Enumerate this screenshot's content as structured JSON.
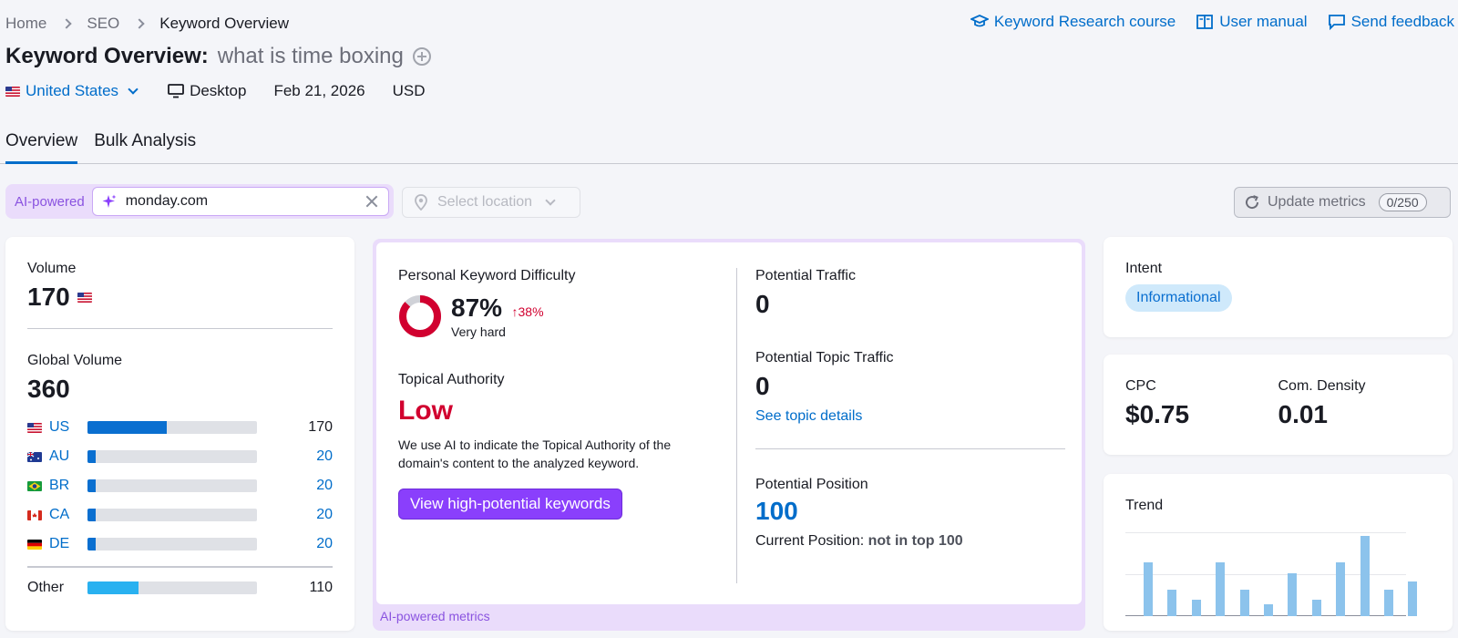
{
  "breadcrumb": [
    "Home",
    "SEO",
    "Keyword Overview"
  ],
  "top_links": [
    "Keyword Research course",
    "User manual",
    "Send feedback"
  ],
  "title": {
    "prefix": "Keyword Overview:",
    "keyword": "what is time boxing"
  },
  "meta": {
    "country": "United States",
    "device": "Desktop",
    "date": "Feb 21, 2026",
    "currency": "USD"
  },
  "tabs": [
    "Overview",
    "Bulk Analysis"
  ],
  "filter": {
    "ai_label": "AI-powered",
    "domain_value": "monday.com",
    "location_placeholder": "Select location",
    "update_label": "Update metrics",
    "update_count": "0/250"
  },
  "volume": {
    "label": "Volume",
    "value": "170",
    "global_label": "Global Volume",
    "global_value": "360",
    "countries": [
      {
        "code": "US",
        "value": "170",
        "fill": 0.47
      },
      {
        "code": "AU",
        "value": "20",
        "fill": 0.05
      },
      {
        "code": "BR",
        "value": "20",
        "fill": 0.05
      },
      {
        "code": "CA",
        "value": "20",
        "fill": 0.05
      },
      {
        "code": "DE",
        "value": "20",
        "fill": 0.05
      }
    ],
    "other": {
      "label": "Other",
      "value": "110",
      "fill": 0.3
    }
  },
  "ai_metrics": {
    "pkd_label": "Personal Keyword Difficulty",
    "pkd_value": "87%",
    "pkd_fraction": 0.87,
    "pkd_delta": "38%",
    "pkd_desc": "Very hard",
    "ta_label": "Topical Authority",
    "ta_value": "Low",
    "ta_desc": "We use AI to indicate the Topical Authority of the domain's content to the analyzed keyword.",
    "button": "View high-potential keywords",
    "pt_label": "Potential Traffic",
    "pt_value": "0",
    "ptt_label": "Potential Topic Traffic",
    "ptt_value": "0",
    "topic_link": "See topic details",
    "pp_label": "Potential Position",
    "pp_value": "100",
    "cp_label": "Current Position:",
    "cp_value": "not in top 100",
    "footer": "AI-powered metrics"
  },
  "intent": {
    "label": "Intent",
    "value": "Informational"
  },
  "cpc": {
    "label": "CPC",
    "value": "$0.75"
  },
  "density": {
    "label": "Com. Density",
    "value": "0.01"
  },
  "trend": {
    "label": "Trend",
    "values": [
      0.67,
      0.33,
      0.2,
      0.67,
      0.33,
      0.15,
      0.53,
      0.2,
      0.67,
      1.0,
      0.33,
      0.43
    ]
  },
  "colors": {
    "accent": "#006dca",
    "ai_purple": "#8a3ffc",
    "danger": "#d1002f"
  }
}
